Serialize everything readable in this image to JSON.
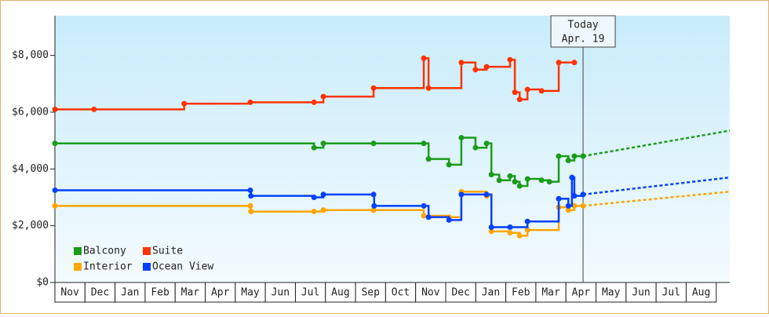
{
  "chart_data": {
    "type": "step-line",
    "xlim": [
      0,
      22.45
    ],
    "ylim": [
      0,
      9400
    ],
    "yticks": [
      {
        "value": 0,
        "label": "$0"
      },
      {
        "value": 2000,
        "label": "$2,000"
      },
      {
        "value": 4000,
        "label": "$4,000"
      },
      {
        "value": 6000,
        "label": "$6,000"
      },
      {
        "value": 8000,
        "label": "$8,000"
      }
    ],
    "xticks": [
      {
        "value": 0.5,
        "label": "Nov"
      },
      {
        "value": 1.5,
        "label": "Dec"
      },
      {
        "value": 2.5,
        "label": "Jan"
      },
      {
        "value": 3.5,
        "label": "Feb"
      },
      {
        "value": 4.5,
        "label": "Mar"
      },
      {
        "value": 5.5,
        "label": "Apr"
      },
      {
        "value": 6.5,
        "label": "May"
      },
      {
        "value": 7.5,
        "label": "Jun"
      },
      {
        "value": 8.5,
        "label": "Jul"
      },
      {
        "value": 9.5,
        "label": "Aug"
      },
      {
        "value": 10.5,
        "label": "Sep"
      },
      {
        "value": 11.5,
        "label": "Oct"
      },
      {
        "value": 12.5,
        "label": "Nov"
      },
      {
        "value": 13.5,
        "label": "Dec"
      },
      {
        "value": 14.5,
        "label": "Jan"
      },
      {
        "value": 15.5,
        "label": "Feb"
      },
      {
        "value": 16.5,
        "label": "Mar"
      },
      {
        "value": 17.5,
        "label": "Apr"
      },
      {
        "value": 18.5,
        "label": "May"
      },
      {
        "value": 19.5,
        "label": "Jun"
      },
      {
        "value": 20.5,
        "label": "Jul"
      },
      {
        "value": 21.5,
        "label": "Aug"
      }
    ],
    "legend": "lower left",
    "annotation": {
      "x": 17.57,
      "label": [
        "Today",
        "Apr. 19"
      ]
    },
    "forecast_x": [
      17.57,
      22.45
    ],
    "series": [
      {
        "name": "Balcony",
        "color": "#1a9c1a",
        "x": [
          0,
          8.62,
          8.93,
          10.6,
          12.27,
          12.43,
          13.11,
          13.52,
          13.99,
          14.36,
          14.52,
          14.78,
          15.14,
          15.3,
          15.46,
          15.72,
          16.19,
          16.45,
          16.76,
          17.08,
          17.28,
          17.57
        ],
        "values": [
          4900,
          4750,
          4900,
          4900,
          4900,
          4350,
          4150,
          5100,
          4750,
          4900,
          3800,
          3600,
          3750,
          3550,
          3400,
          3650,
          3600,
          3550,
          4450,
          4300,
          4450,
          4450
        ],
        "forecast": [
          4450,
          5350
        ]
      },
      {
        "name": "Suite",
        "color": "#ff3300",
        "x": [
          0,
          1.3,
          4.3,
          6.5,
          8.62,
          8.93,
          10.6,
          12.27,
          12.43,
          13.52,
          13.99,
          14.36,
          15.14,
          15.3,
          15.46,
          15.72,
          16.19,
          16.76,
          17.28
        ],
        "values": [
          6100,
          6100,
          6300,
          6350,
          6350,
          6550,
          6850,
          7900,
          6850,
          7750,
          7500,
          7600,
          7850,
          6700,
          6450,
          6800,
          6750,
          7750,
          7750
        ]
      },
      {
        "name": "Interior",
        "color": "#ffa500",
        "x": [
          0,
          6.5,
          6.52,
          8.62,
          8.93,
          10.6,
          12.27,
          13.11,
          13.52,
          14.36,
          14.52,
          15.14,
          15.46,
          15.72,
          16.76,
          17.08,
          17.28,
          17.57
        ],
        "values": [
          2700,
          2700,
          2500,
          2500,
          2550,
          2550,
          2350,
          2300,
          3200,
          3050,
          1800,
          1750,
          1650,
          1850,
          2650,
          2550,
          2700,
          2700
        ],
        "forecast": [
          2700,
          3200
        ]
      },
      {
        "name": "Ocean View",
        "color": "#0040ff",
        "x": [
          0,
          6.5,
          6.52,
          8.62,
          8.93,
          10.6,
          10.62,
          12.27,
          12.43,
          13.11,
          13.52,
          14.36,
          14.52,
          15.14,
          15.72,
          16.76,
          17.08,
          17.2,
          17.28,
          17.57
        ],
        "values": [
          3250,
          3250,
          3050,
          3000,
          3100,
          3100,
          2700,
          2700,
          2300,
          2200,
          3100,
          3100,
          1950,
          1950,
          2150,
          2950,
          2700,
          3700,
          3050,
          3100
        ],
        "forecast": [
          3100,
          3700
        ]
      }
    ]
  }
}
